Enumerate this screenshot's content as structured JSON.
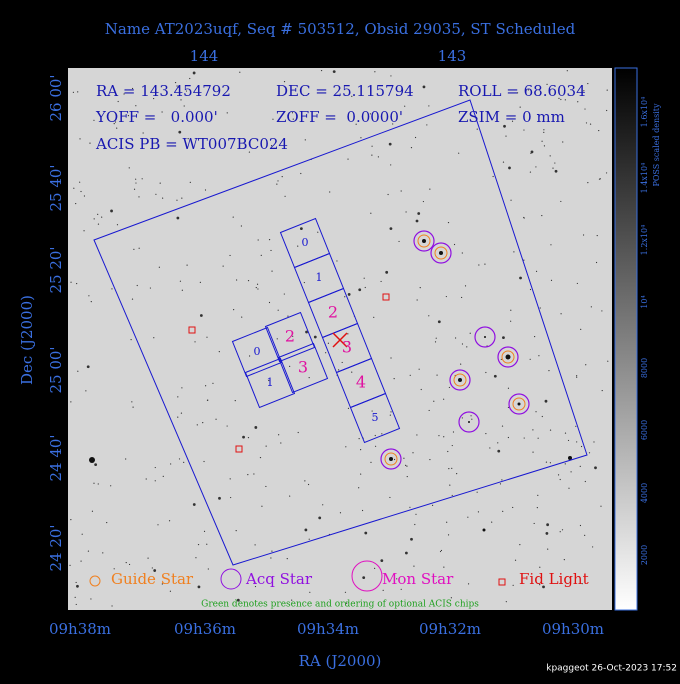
{
  "title": "Name AT2023uqf, Seq # 503512, Obsid 29035, ST Scheduled",
  "info": [
    "RA = 143.454792",
    "DEC = 25.115794",
    "ROLL = 68.6034",
    "YOFF =   0.000'",
    "ZOFF =  0.0000'",
    "ZSIM = 0 mm",
    "ACIS PB = WT007BC024"
  ],
  "top_ticks": [
    "144",
    "143"
  ],
  "x_ticks": [
    "09h38m",
    "09h36m",
    "09h34m",
    "09h32m",
    "09h30m"
  ],
  "y_ticks": [
    "26 00'",
    "25 40'",
    "25 20'",
    "25 00'",
    "24 40'",
    "24 20'"
  ],
  "x_label": "RA (J2000)",
  "y_label": "Dec (J2000)",
  "colorbar": {
    "label": "POSS scaled density",
    "ticks": [
      "2000",
      "4000",
      "6000",
      "8000",
      "10⁴",
      "1.2x10⁴",
      "1.4x10⁴",
      "1.6x10⁴"
    ]
  },
  "chips_s": [
    "0",
    "1",
    "2",
    "3",
    "4",
    "5"
  ],
  "chips_i": [
    "0",
    "1",
    "2",
    "3"
  ],
  "legend": [
    "Guide Star",
    "Acq Star",
    "Mon Star",
    "Fid Light"
  ],
  "note": "Green denotes presence and ordering of optional ACIS chips",
  "footer": "kpaggeot 26-Oct-2023 17:52"
}
